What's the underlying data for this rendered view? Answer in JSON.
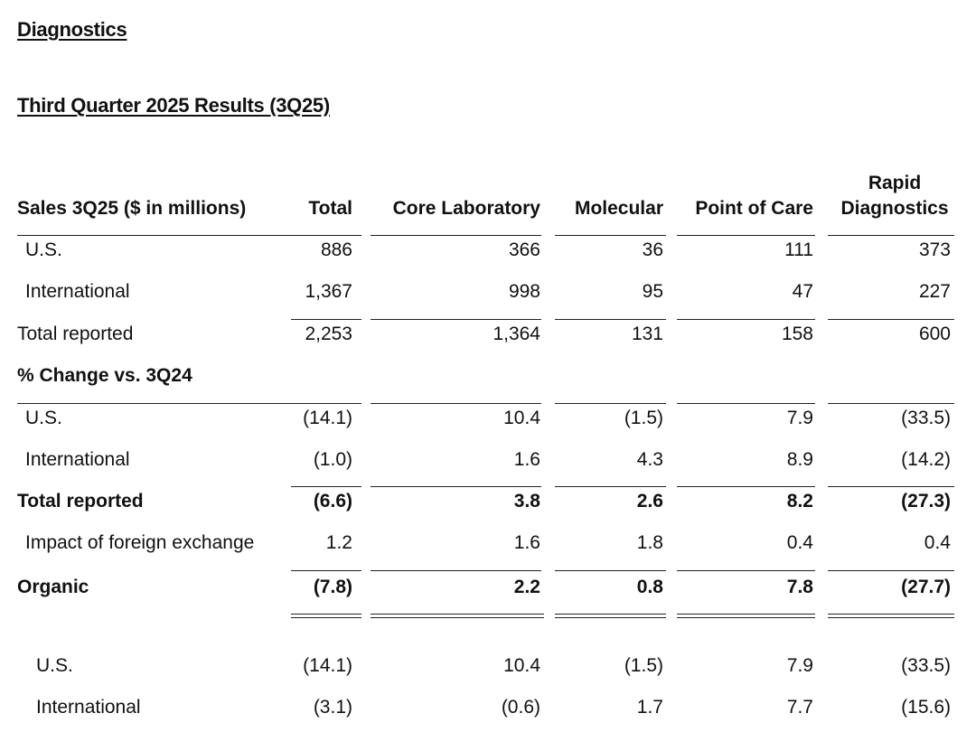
{
  "headings": {
    "section": "Diagnostics",
    "subtitle": "Third Quarter 2025 Results (3Q25)"
  },
  "table": {
    "row_header": "Sales 3Q25 ($ in millions)",
    "columns": [
      "Total",
      "Core Laboratory",
      "Molecular",
      "Point of Care",
      "Rapid Diagnostics"
    ],
    "col5_line1": "Rapid",
    "col5_line2": "Diagnostics",
    "pct_header": "% Change vs. 3Q24",
    "rows": [
      {
        "label": "U.S.",
        "values": [
          "886",
          "366",
          "36",
          "111",
          "373"
        ]
      },
      {
        "label": "International",
        "values": [
          "1,367",
          "998",
          "95",
          "47",
          "227"
        ]
      },
      {
        "label": "Total reported",
        "values": [
          "2,253",
          "1,364",
          "131",
          "158",
          "600"
        ]
      },
      {
        "label": "U.S.",
        "values": [
          "(14.1)",
          "10.4",
          "(1.5)",
          "7.9",
          "(33.5)"
        ]
      },
      {
        "label": "International",
        "values": [
          "(1.0)",
          "1.6",
          "4.3",
          "8.9",
          "(14.2)"
        ]
      },
      {
        "label": "Total reported",
        "values": [
          "(6.6)",
          "3.8",
          "2.6",
          "8.2",
          "(27.3)"
        ]
      },
      {
        "label": "Impact of foreign exchange",
        "values": [
          "1.2",
          "1.6",
          "1.8",
          "0.4",
          "0.4"
        ]
      },
      {
        "label": "Organic",
        "values": [
          "(7.8)",
          "2.2",
          "0.8",
          "7.8",
          "(27.7)"
        ]
      },
      {
        "label": "U.S.",
        "values": [
          "(14.1)",
          "10.4",
          "(1.5)",
          "7.9",
          "(33.5)"
        ]
      },
      {
        "label": "International",
        "values": [
          "(3.1)",
          "(0.6)",
          "1.7",
          "7.7",
          "(15.6)"
        ]
      }
    ]
  }
}
